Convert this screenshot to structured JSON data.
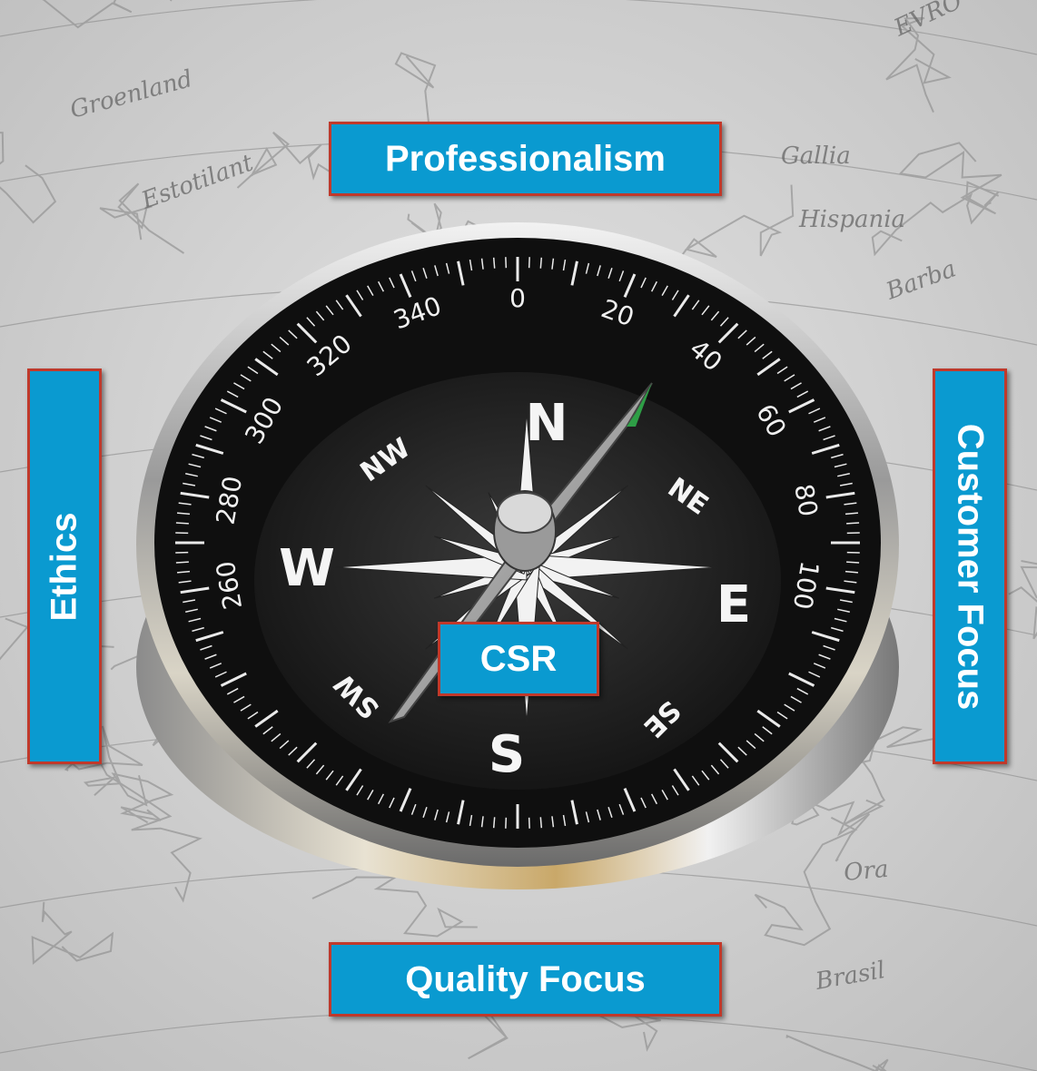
{
  "values": {
    "top": "Professionalism",
    "left": "Ethics",
    "right": "Customer Focus",
    "center": "CSR",
    "bottom": "Quality Focus"
  },
  "compass": {
    "cardinals": [
      "N",
      "E",
      "S",
      "W"
    ],
    "intercardinals": [
      "NE",
      "SE",
      "SW",
      "NW"
    ],
    "degree_labels": [
      "0",
      "20",
      "40",
      "60",
      "80",
      "100",
      "260",
      "280",
      "300",
      "320",
      "340"
    ]
  },
  "map_text": [
    "EVRO",
    "Estotilant",
    "Groenland",
    "Barba",
    "Brasil",
    "Hispania",
    "Gallia",
    "Ora"
  ],
  "colors": {
    "box_fill": "#0a9ad0",
    "box_border": "#c0392b",
    "box_text": "#ffffff",
    "needle_tip": "#2e9e46"
  }
}
